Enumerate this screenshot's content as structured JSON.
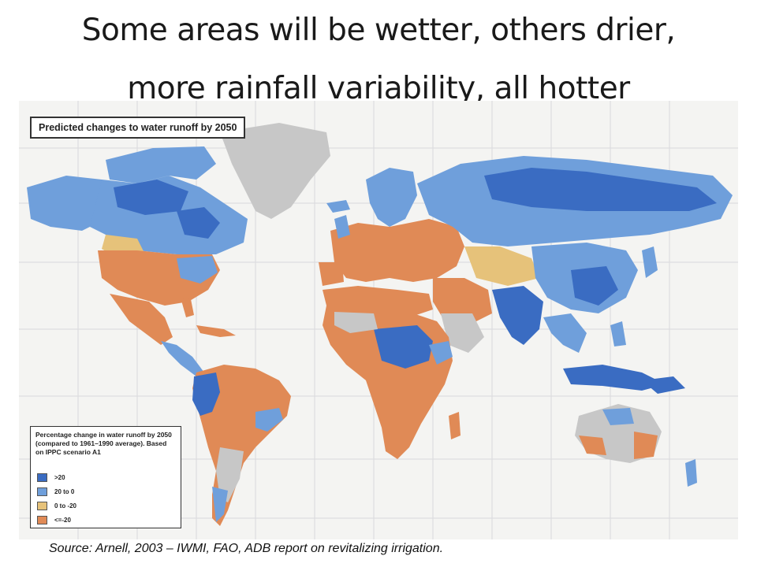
{
  "slide": {
    "title_line1": "Some areas will be wetter, others drier,",
    "title_line2": "more rainfall variability, all hotter",
    "source": "Source: Arnell, 2003 – IWMI, FAO, ADB report on revitalizing irrigation."
  },
  "map": {
    "heading": "Predicted changes to water runoff by 2050",
    "legend": {
      "title": "Percentage change in water runoff by 2050 (compared to 1961–1990 average). Based on IPPC scenario A1",
      "items": [
        {
          "label": ">20",
          "color": "#3a6cc2"
        },
        {
          "label": "20 to 0",
          "color": "#6f9fdb"
        },
        {
          "label": "0 to -20",
          "color": "#e6c27a"
        },
        {
          "label": "<=-20",
          "color": "#e08a56"
        }
      ]
    },
    "colors": {
      "ocean": "#f4f4f2",
      "grid": "#d9d9dc",
      "no_data": "#c7c7c7",
      "strong_increase": "#3a6cc2",
      "increase": "#6f9fdb",
      "decrease": "#e6c27a",
      "strong_decrease": "#e08a56"
    }
  }
}
